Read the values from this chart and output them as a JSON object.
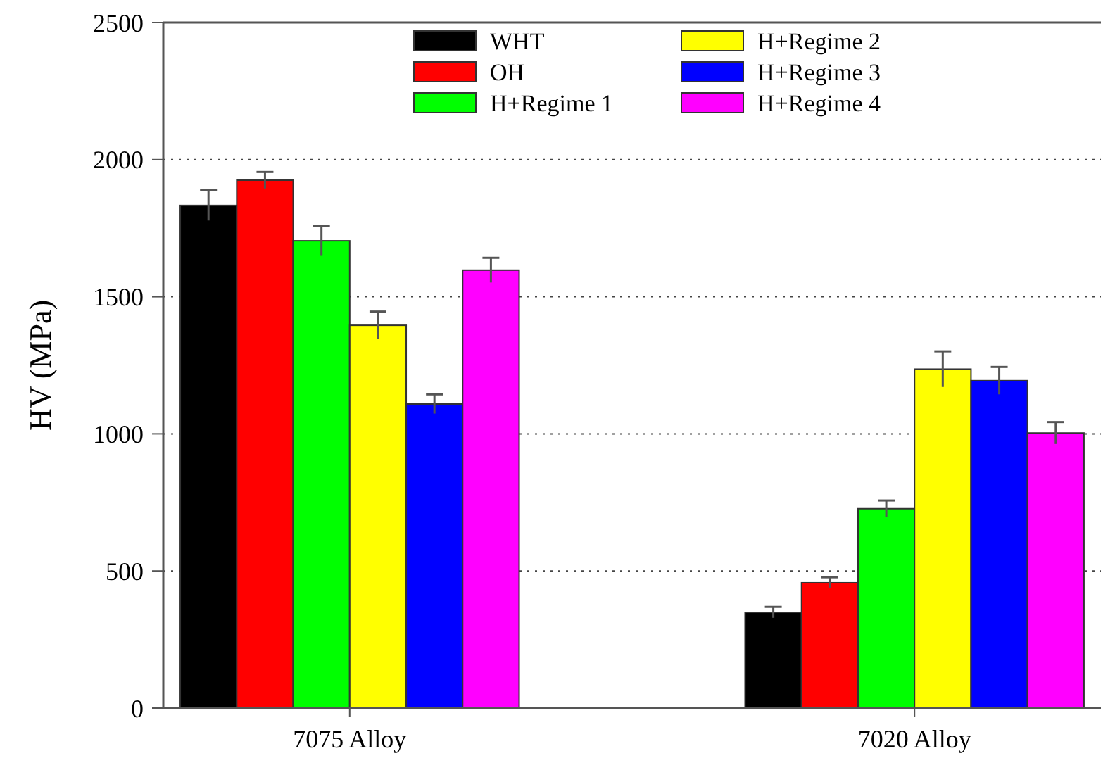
{
  "chart_data": {
    "type": "bar",
    "ylabel": "HV (MPa)",
    "categories": [
      "7075 Alloy",
      "7020 Alloy"
    ],
    "series": [
      {
        "name": "WHT",
        "color": "#000000",
        "values": [
          1833,
          349
        ],
        "errors": [
          55,
          20
        ]
      },
      {
        "name": "OH",
        "color": "#ff0000",
        "values": [
          1925,
          457
        ],
        "errors": [
          30,
          20
        ]
      },
      {
        "name": "H+Regime 1",
        "color": "#00ff00",
        "values": [
          1704,
          727
        ],
        "errors": [
          55,
          30
        ]
      },
      {
        "name": "H+Regime 2",
        "color": "#ffff00",
        "values": [
          1396,
          1236
        ],
        "errors": [
          50,
          65
        ]
      },
      {
        "name": "H+Regime 3",
        "color": "#0000ff",
        "values": [
          1109,
          1194
        ],
        "errors": [
          35,
          50
        ]
      },
      {
        "name": "H+Regime 4",
        "color": "#ff00ff",
        "values": [
          1597,
          1003
        ],
        "errors": [
          45,
          40
        ]
      }
    ],
    "ylim": [
      0,
      2500
    ],
    "yticks": [
      0,
      500,
      1000,
      1500,
      2000,
      2500
    ],
    "grid": "y",
    "legend": "top"
  }
}
